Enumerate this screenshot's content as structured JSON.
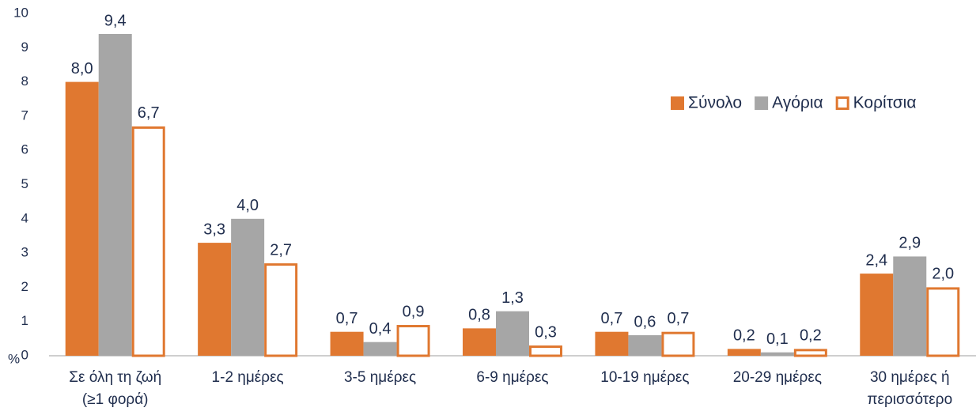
{
  "chart_data": {
    "type": "bar",
    "y_label": "%",
    "categories": [
      [
        "Σε όλη τη ζωή",
        "(≥1 φορά)"
      ],
      [
        "1-2 ημέρες"
      ],
      [
        "3-5 ημέρες"
      ],
      [
        "6-9 ημέρες"
      ],
      [
        "10-19 ημέρες"
      ],
      [
        "20-29 ημέρες"
      ],
      [
        "30 ημέρες ή",
        "περισσότερο"
      ]
    ],
    "series": [
      {
        "name": "Σύνολο",
        "color": "#E07830",
        "fill": "#E07830",
        "values": [
          8.0,
          3.3,
          0.7,
          0.8,
          0.7,
          0.2,
          2.4
        ],
        "value_labels": [
          "8,0",
          "3,3",
          "0,7",
          "0,8",
          "0,7",
          "0,2",
          "2,4"
        ]
      },
      {
        "name": "Αγόρια",
        "color": "#A6A6A6",
        "fill": "#A6A6A6",
        "values": [
          9.4,
          4.0,
          0.4,
          1.3,
          0.6,
          0.1,
          2.9
        ],
        "value_labels": [
          "9,4",
          "4,0",
          "0,4",
          "1,3",
          "0,6",
          "0,1",
          "2,9"
        ]
      },
      {
        "name": "Κορίτσια",
        "color": "#E07830",
        "fill": "#FFFFFF",
        "values": [
          6.7,
          2.7,
          0.9,
          0.3,
          0.7,
          0.2,
          2.0
        ],
        "value_labels": [
          "6,7",
          "2,7",
          "0,9",
          "0,3",
          "0,7",
          "0,2",
          "2,0"
        ]
      }
    ],
    "ylim": [
      0,
      10
    ],
    "yticks": [
      0,
      1,
      2,
      3,
      4,
      5,
      6,
      7,
      8,
      9,
      10
    ],
    "grid": false,
    "legend": "top-right"
  }
}
